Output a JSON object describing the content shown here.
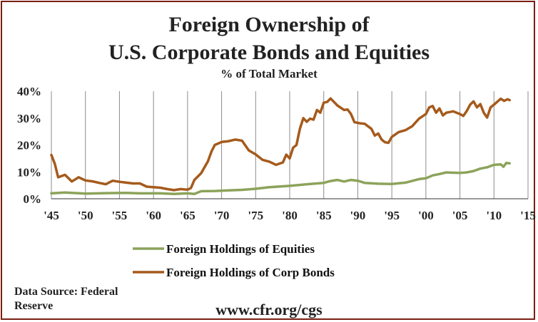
{
  "title_line1": "Foreign Ownership of",
  "title_line2": "U.S. Corporate Bonds and Equities",
  "subtitle": "% of Total Market",
  "source": "Data Source: Federal Reserve",
  "website": "www.cfr.org/cgs",
  "colors": {
    "equities": "#8ca35a",
    "bonds": "#a55a1c",
    "frame": "#7a1f12",
    "grid": "#8c8c8c"
  },
  "chart_data": {
    "type": "line",
    "title": "Foreign Ownership of U.S. Corporate Bonds and Equities",
    "subtitle": "% of Total Market",
    "xlabel": "",
    "ylabel": "",
    "xlim": [
      1945,
      2015
    ],
    "ylim": [
      0,
      40
    ],
    "x_tick_values": [
      1945,
      1950,
      1955,
      1960,
      1965,
      1970,
      1975,
      1980,
      1985,
      1990,
      1995,
      2000,
      2005,
      2010,
      2015
    ],
    "x_tick_labels": [
      "'45",
      "'50",
      "'55",
      "'60",
      "'65",
      "'70",
      "'75",
      "'80",
      "'85",
      "'90",
      "'95",
      "'00",
      "'05",
      "'10",
      "'15"
    ],
    "y_tick_values": [
      0,
      10,
      20,
      30,
      40
    ],
    "y_tick_labels": [
      "0%",
      "10%",
      "20%",
      "30%",
      "40%"
    ],
    "grid": "vertical",
    "legend_position": "bottom-left",
    "series": [
      {
        "name": "Foreign Holdings of Equities",
        "color": "#8ca35a",
        "points": [
          [
            1945,
            2.0
          ],
          [
            1947,
            2.3
          ],
          [
            1950,
            1.9
          ],
          [
            1953,
            2.1
          ],
          [
            1956,
            2.2
          ],
          [
            1958,
            2.0
          ],
          [
            1961,
            2.0
          ],
          [
            1963,
            1.8
          ],
          [
            1965,
            2.0
          ],
          [
            1966,
            1.8
          ],
          [
            1967,
            2.8
          ],
          [
            1969,
            2.9
          ],
          [
            1971,
            3.1
          ],
          [
            1973,
            3.3
          ],
          [
            1975,
            3.7
          ],
          [
            1977,
            4.3
          ],
          [
            1980,
            4.8
          ],
          [
            1983,
            5.5
          ],
          [
            1985,
            5.9
          ],
          [
            1986,
            6.6
          ],
          [
            1987,
            7.0
          ],
          [
            1988,
            6.4
          ],
          [
            1989,
            7.0
          ],
          [
            1990,
            6.7
          ],
          [
            1991,
            5.9
          ],
          [
            1993,
            5.6
          ],
          [
            1995,
            5.5
          ],
          [
            1997,
            6.0
          ],
          [
            1999,
            7.3
          ],
          [
            2000,
            7.6
          ],
          [
            2001,
            8.7
          ],
          [
            2002,
            9.2
          ],
          [
            2003,
            9.8
          ],
          [
            2005,
            9.6
          ],
          [
            2006,
            9.8
          ],
          [
            2007,
            10.3
          ],
          [
            2008,
            11.2
          ],
          [
            2009,
            11.7
          ],
          [
            2010,
            12.6
          ],
          [
            2011,
            12.8
          ],
          [
            2011.4,
            11.9
          ],
          [
            2011.8,
            13.3
          ],
          [
            2012.3,
            13.2
          ]
        ]
      },
      {
        "name": "Foreign Holdings of Corp Bonds",
        "color": "#a55a1c",
        "points": [
          [
            1945,
            16.3
          ],
          [
            1945.5,
            13.0
          ],
          [
            1946,
            8.0
          ],
          [
            1947,
            8.9
          ],
          [
            1948,
            6.4
          ],
          [
            1949,
            8.0
          ],
          [
            1950,
            6.8
          ],
          [
            1951,
            6.5
          ],
          [
            1952,
            5.9
          ],
          [
            1953,
            5.4
          ],
          [
            1954,
            6.7
          ],
          [
            1955,
            6.3
          ],
          [
            1956,
            6.0
          ],
          [
            1957,
            5.7
          ],
          [
            1958,
            5.7
          ],
          [
            1959,
            4.5
          ],
          [
            1960,
            4.3
          ],
          [
            1961,
            4.1
          ],
          [
            1962,
            3.6
          ],
          [
            1963,
            3.2
          ],
          [
            1964,
            3.6
          ],
          [
            1965,
            3.4
          ],
          [
            1965.5,
            4.0
          ],
          [
            1966,
            7.0
          ],
          [
            1967,
            9.5
          ],
          [
            1968,
            14.0
          ],
          [
            1968.5,
            17.5
          ],
          [
            1969,
            20.0
          ],
          [
            1970,
            21.1
          ],
          [
            1971,
            21.4
          ],
          [
            1972,
            22.0
          ],
          [
            1973,
            21.6
          ],
          [
            1974,
            18.0
          ],
          [
            1975,
            16.5
          ],
          [
            1976,
            14.5
          ],
          [
            1977,
            13.8
          ],
          [
            1978,
            12.6
          ],
          [
            1979,
            13.5
          ],
          [
            1979.5,
            16.4
          ],
          [
            1980,
            15.0
          ],
          [
            1980.5,
            19.0
          ],
          [
            1981,
            20.0
          ],
          [
            1981.5,
            26.0
          ],
          [
            1982,
            30.0
          ],
          [
            1982.5,
            28.6
          ],
          [
            1983,
            29.8
          ],
          [
            1983.5,
            29.4
          ],
          [
            1984,
            33.0
          ],
          [
            1984.5,
            32.0
          ],
          [
            1985,
            35.7
          ],
          [
            1985.5,
            36.0
          ],
          [
            1986,
            37.3
          ],
          [
            1986.5,
            36.0
          ],
          [
            1987,
            34.7
          ],
          [
            1988,
            33.0
          ],
          [
            1988.5,
            33.2
          ],
          [
            1989,
            31.5
          ],
          [
            1989.5,
            28.5
          ],
          [
            1990,
            28.2
          ],
          [
            1990.5,
            28.0
          ],
          [
            1991,
            27.9
          ],
          [
            1992,
            26.0
          ],
          [
            1992.5,
            23.5
          ],
          [
            1993,
            24.3
          ],
          [
            1993.5,
            22.0
          ],
          [
            1994,
            21.0
          ],
          [
            1994.5,
            20.8
          ],
          [
            1995,
            23.0
          ],
          [
            1996,
            24.8
          ],
          [
            1997,
            25.5
          ],
          [
            1998,
            27.0
          ],
          [
            1999,
            29.8
          ],
          [
            2000,
            31.5
          ],
          [
            2000.5,
            34.0
          ],
          [
            2001,
            34.5
          ],
          [
            2001.5,
            32.0
          ],
          [
            2002,
            33.6
          ],
          [
            2002.5,
            31.0
          ],
          [
            2003,
            32.0
          ],
          [
            2004,
            32.5
          ],
          [
            2005,
            31.5
          ],
          [
            2005.5,
            30.8
          ],
          [
            2006,
            32.6
          ],
          [
            2006.5,
            35.0
          ],
          [
            2007,
            36.2
          ],
          [
            2007.5,
            34.0
          ],
          [
            2008,
            35.2
          ],
          [
            2008.5,
            32.0
          ],
          [
            2009,
            30.2
          ],
          [
            2009.5,
            34.0
          ],
          [
            2010,
            35.0
          ],
          [
            2011,
            37.2
          ],
          [
            2011.5,
            36.4
          ],
          [
            2012,
            37.0
          ],
          [
            2012.3,
            36.7
          ]
        ]
      }
    ]
  }
}
